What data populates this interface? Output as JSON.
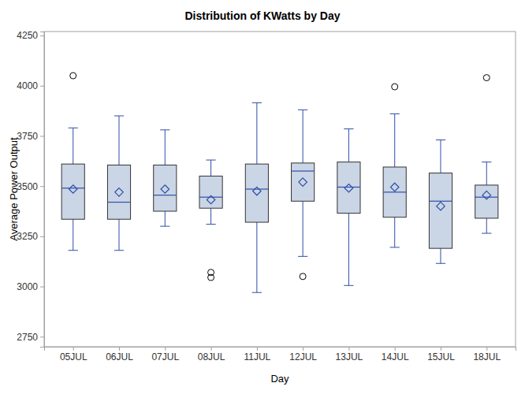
{
  "chart_data": {
    "type": "box",
    "title": "Distribution of KWatts by Day",
    "x_label": "Day",
    "y_label": "Average Power Output",
    "color": "#cad5e5",
    "categories": [
      "05JUL",
      "06JUL",
      "07JUL",
      "08JUL",
      "11JUL",
      "12JUL",
      "13JUL",
      "14JUL",
      "15JUL",
      "18JUL"
    ],
    "boxes": [
      {
        "min": 3180,
        "q1": 3335,
        "median": 3490,
        "q3": 3610,
        "max": 3790,
        "mean": 3485,
        "outliers": [
          4050
        ]
      },
      {
        "min": 3180,
        "q1": 3335,
        "median": 3420,
        "q3": 3605,
        "max": 3850,
        "mean": 3470,
        "outliers": []
      },
      {
        "min": 3300,
        "q1": 3375,
        "median": 3455,
        "q3": 3605,
        "max": 3780,
        "mean": 3485,
        "outliers": []
      },
      {
        "min": 3310,
        "q1": 3390,
        "median": 3445,
        "q3": 3550,
        "max": 3630,
        "mean": 3432,
        "outliers": [
          3070,
          3045
        ]
      },
      {
        "min": 2970,
        "q1": 3320,
        "median": 3485,
        "q3": 3610,
        "max": 3915,
        "mean": 3475,
        "outliers": []
      },
      {
        "min": 3150,
        "q1": 3425,
        "median": 3575,
        "q3": 3615,
        "max": 3880,
        "mean": 3520,
        "outliers": [
          3050
        ]
      },
      {
        "min": 3005,
        "q1": 3365,
        "median": 3495,
        "q3": 3620,
        "max": 3785,
        "mean": 3490,
        "outliers": []
      },
      {
        "min": 3195,
        "q1": 3345,
        "median": 3470,
        "q3": 3595,
        "max": 3860,
        "mean": 3495,
        "outliers": [
          3995
        ]
      },
      {
        "min": 3115,
        "q1": 3190,
        "median": 3425,
        "q3": 3565,
        "max": 3730,
        "mean": 3400,
        "outliers": []
      },
      {
        "min": 3265,
        "q1": 3340,
        "median": 3445,
        "q3": 3505,
        "max": 3620,
        "mean": 3455,
        "outliers": [
          4040
        ]
      }
    ],
    "ylim": [
      2700,
      4270
    ],
    "yticks": [
      2750,
      3000,
      3250,
      3500,
      3750,
      4000,
      4250
    ],
    "grid": false
  }
}
